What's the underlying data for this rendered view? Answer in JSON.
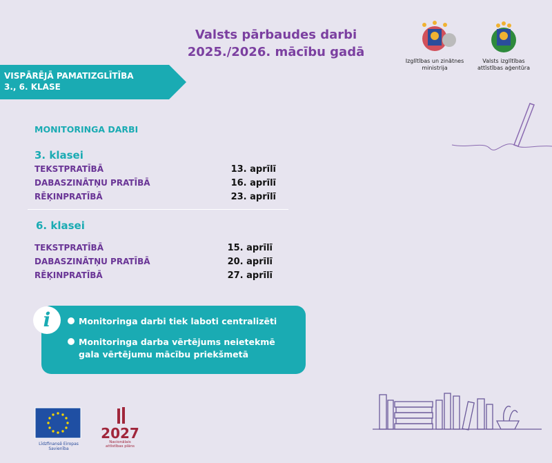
{
  "header": {
    "title_line1": "Valsts pārbaudes darbi",
    "title_line2": "2025./2026. mācību gadā"
  },
  "logos": {
    "ministry": "Izglītības un zinātnes ministrija",
    "agency": "Valsts izglītības attīstības aģentūra",
    "eu": "Līdzfinansē Eiropas Savienība",
    "nap_year": "2027",
    "nap_caption": "Nacionālais attīstības plāns"
  },
  "banner": {
    "line1": "VISPĀRĒJĀ PAMATIZGLĪTĪBA",
    "line2": "3., 6. KLASE"
  },
  "section_title": "MONITORINGA DARBI",
  "groups": [
    {
      "heading": "3. klasei",
      "items": [
        {
          "subject": "TEKSTPRATĪBĀ",
          "date": "13. aprīlī"
        },
        {
          "subject": "DABASZINĀTŅU PRATĪBĀ",
          "date": "16. aprīlī"
        },
        {
          "subject": "RĒĶINPRATĪBĀ",
          "date": "23. aprīlī"
        }
      ]
    },
    {
      "heading": "6. klasei",
      "items": [
        {
          "subject": "TEKSTPRATĪBĀ",
          "date": "15. aprīlī"
        },
        {
          "subject": "DABASZINĀTŅU PRATĪBĀ",
          "date": "20. aprīlī"
        },
        {
          "subject": "RĒĶINPRATĪBĀ",
          "date": "27. aprīlī"
        }
      ]
    }
  ],
  "info": {
    "icon": "info-icon",
    "bullets": [
      "Monitoringa darbi tiek laboti centralizēti",
      "Monitoringa darba vērtējums neietekmē gala vērtējumu mācību priekšmetā"
    ]
  },
  "colors": {
    "background": "#e7e4ef",
    "purple": "#7b3fa0",
    "teal": "#1aabb3"
  }
}
